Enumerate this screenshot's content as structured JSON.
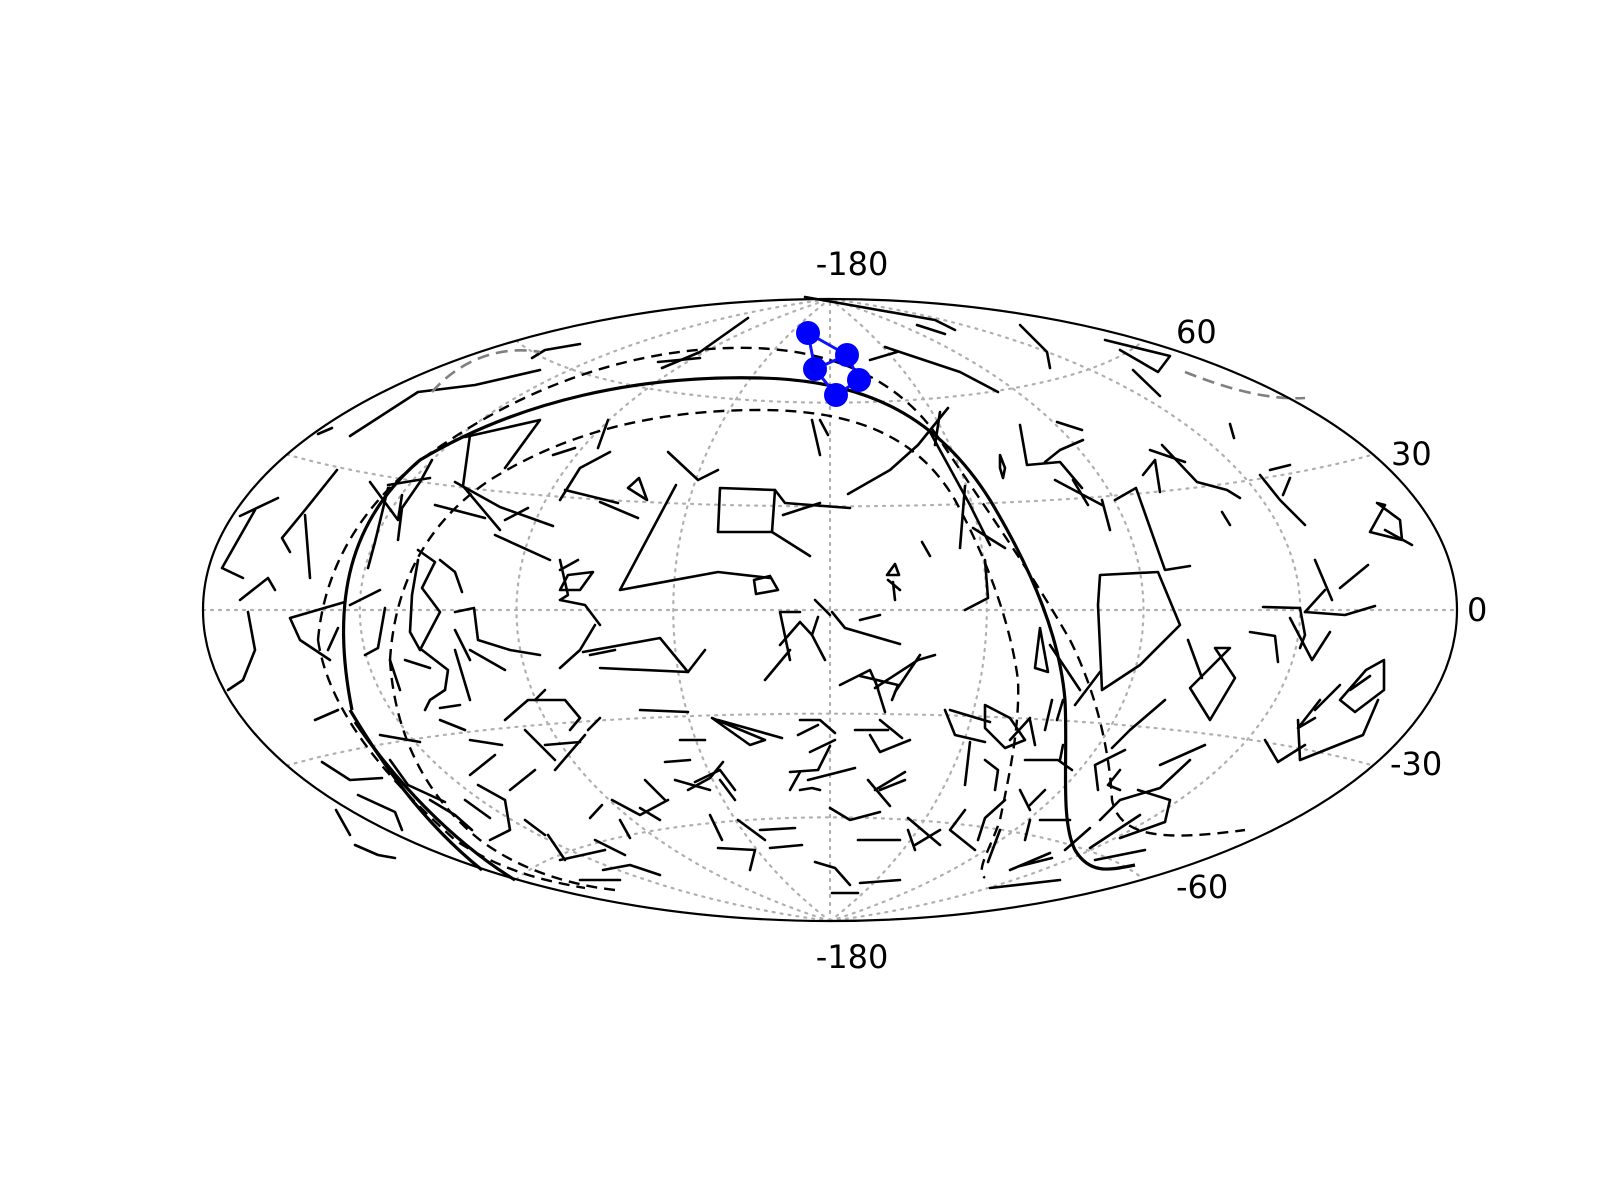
{
  "figure": {
    "projection": "aitoff",
    "background": "#ffffff"
  },
  "colors": {
    "grid": "#b0b0b0",
    "constellation": "#000000",
    "highlight": "#0000ff"
  },
  "tick_labels": {
    "top_center": "-180",
    "bottom_center": "-180",
    "lat_60": "60",
    "lat_30": "30",
    "lat_0": "0",
    "lat_m30": "-30",
    "lat_m60": "-60"
  },
  "grid": {
    "meridian_step_deg": 45,
    "parallel_step_deg": 30,
    "visible": true
  },
  "galactic_plane": {
    "line_style": "solid",
    "band_style": "dashed",
    "band_halfwidth_deg": 10
  },
  "highlighted_constellation": {
    "color": "#0000ff",
    "star_count": 5
  }
}
